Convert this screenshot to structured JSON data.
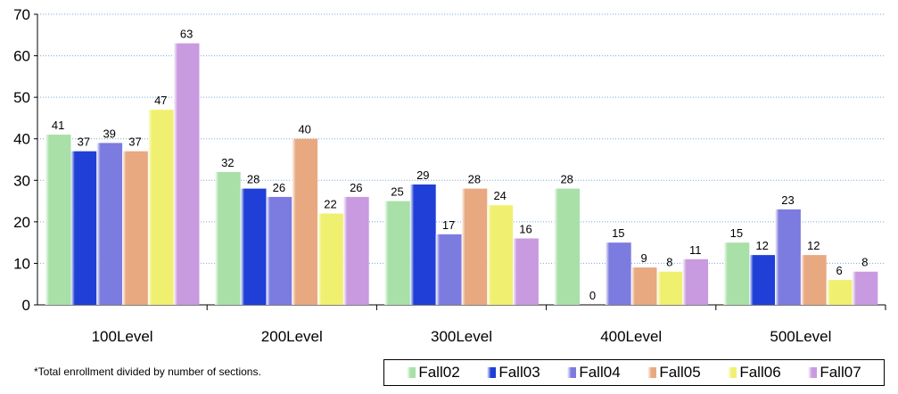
{
  "chart_data": {
    "type": "bar",
    "categories": [
      "100Level",
      "200Level",
      "300Level",
      "400Level",
      "500Level"
    ],
    "series": [
      {
        "name": "Fall02",
        "color": "#a8e0a8",
        "values": [
          41,
          32,
          25,
          28,
          15
        ]
      },
      {
        "name": "Fall03",
        "color": "#1f3fd6",
        "values": [
          37,
          28,
          29,
          0,
          12
        ]
      },
      {
        "name": "Fall04",
        "color": "#7b7be0",
        "values": [
          39,
          26,
          17,
          15,
          23
        ]
      },
      {
        "name": "Fall05",
        "color": "#e8a880",
        "values": [
          37,
          40,
          28,
          9,
          12
        ]
      },
      {
        "name": "Fall06",
        "color": "#f0f070",
        "values": [
          47,
          22,
          24,
          8,
          6
        ]
      },
      {
        "name": "Fall07",
        "color": "#c89ae0",
        "values": [
          63,
          26,
          16,
          11,
          8
        ]
      }
    ],
    "ylim": [
      0,
      70
    ],
    "yticks": [
      0,
      10,
      20,
      30,
      40,
      50,
      60,
      70
    ],
    "grid": true,
    "legend_position": "bottom-right"
  },
  "footnote": "*Total enrollment divided by number of sections."
}
